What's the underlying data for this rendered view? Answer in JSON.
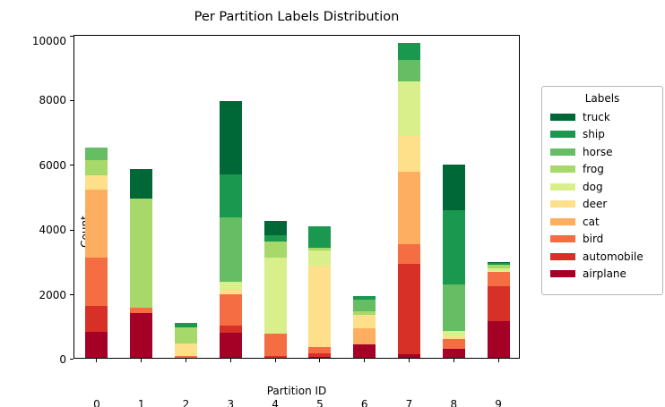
{
  "title": "Per Partition Labels Distribution",
  "axes": {
    "xlabel": "Partition ID",
    "ylabel": "Count"
  },
  "legend": {
    "title": "Labels",
    "entries": [
      {
        "label": "truck",
        "color": "#006837"
      },
      {
        "label": "ship",
        "color": "#1a9850"
      },
      {
        "label": "horse",
        "color": "#66bd63"
      },
      {
        "label": "frog",
        "color": "#a6d96a"
      },
      {
        "label": "dog",
        "color": "#d9ef8b"
      },
      {
        "label": "deer",
        "color": "#fee08b"
      },
      {
        "label": "cat",
        "color": "#fdae61"
      },
      {
        "label": "bird",
        "color": "#f46d43"
      },
      {
        "label": "automobile",
        "color": "#d73027"
      },
      {
        "label": "airplane",
        "color": "#a50026"
      }
    ]
  },
  "chart_data": {
    "type": "bar",
    "stacked": true,
    "title": "Per Partition Labels Distribution",
    "xlabel": "Partition ID",
    "ylabel": "Count",
    "categories": [
      "0",
      "1",
      "2",
      "3",
      "4",
      "5",
      "6",
      "7",
      "8",
      "9"
    ],
    "ylim": [
      0,
      10000
    ],
    "yticks": [
      0,
      2000,
      4000,
      6000,
      8000,
      10000
    ],
    "grid": false,
    "legend_position": "right-outside",
    "stack_order": "bottom-to-top",
    "series": [
      {
        "name": "airplane",
        "color": "#a50026",
        "values": [
          790,
          1390,
          0,
          780,
          0,
          40,
          420,
          100,
          270,
          1130
        ]
      },
      {
        "name": "automobile",
        "color": "#d73027",
        "values": [
          800,
          0,
          0,
          210,
          60,
          110,
          0,
          2800,
          0,
          1070
        ]
      },
      {
        "name": "bird",
        "color": "#f46d43",
        "values": [
          1500,
          170,
          50,
          980,
          680,
          190,
          0,
          620,
          310,
          450
        ]
      },
      {
        "name": "cat",
        "color": "#fdae61",
        "values": [
          2110,
          0,
          0,
          0,
          0,
          0,
          480,
          2220,
          0,
          0
        ]
      },
      {
        "name": "deer",
        "color": "#fee08b",
        "values": [
          440,
          0,
          400,
          140,
          0,
          2520,
          430,
          1110,
          110,
          40
        ]
      },
      {
        "name": "dog",
        "color": "#d9ef8b",
        "values": [
          0,
          0,
          0,
          250,
          2360,
          460,
          0,
          1690,
          140,
          80
        ]
      },
      {
        "name": "frog",
        "color": "#a6d96a",
        "values": [
          460,
          3360,
          500,
          0,
          500,
          90,
          110,
          0,
          0,
          110
        ]
      },
      {
        "name": "horse",
        "color": "#66bd63",
        "values": [
          400,
          0,
          0,
          1990,
          0,
          0,
          370,
          660,
          1450,
          0
        ]
      },
      {
        "name": "ship",
        "color": "#1a9850",
        "values": [
          0,
          0,
          140,
          1320,
          180,
          650,
          90,
          530,
          2290,
          40
        ]
      },
      {
        "name": "truck",
        "color": "#006837",
        "values": [
          0,
          920,
          0,
          2250,
          460,
          0,
          0,
          0,
          1400,
          30
        ]
      }
    ]
  }
}
